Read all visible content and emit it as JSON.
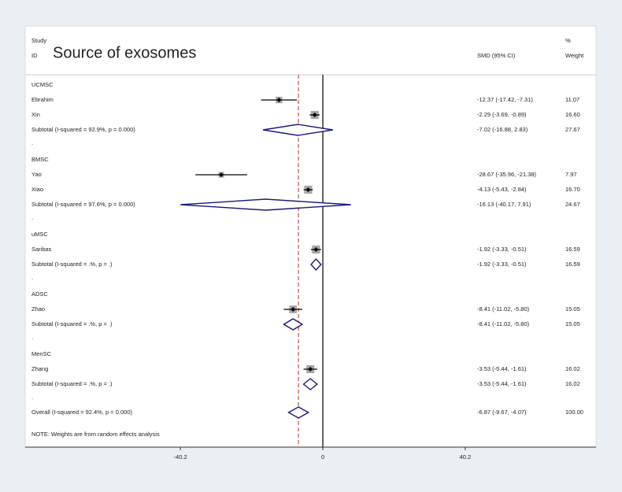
{
  "chart_data": {
    "type": "forest",
    "title": "Source of exosomes",
    "study_header": "Study",
    "id_header": "ID",
    "ci_header": "SMD (95% CI)",
    "weight_header_top": "%",
    "weight_header": "Weight",
    "groups": [
      {
        "name": "UCMSC",
        "studies": [
          {
            "label": "Ebrahim",
            "smd": -12.37,
            "lo": -17.42,
            "hi": -7.31,
            "ci_label": "-12.37 (-17.42, -7.31)",
            "weight": 11.07,
            "weight_label": "11.07"
          },
          {
            "label": "Xin",
            "smd": -2.29,
            "lo": -3.69,
            "hi": -0.89,
            "ci_label": "-2.29 (-3.69, -0.89)",
            "weight": 16.6,
            "weight_label": "16.60"
          }
        ],
        "subtotal": {
          "label": "Subtotal  (I-squared = 92.9%, p = 0.000)",
          "smd": -7.02,
          "lo": -16.88,
          "hi": 2.83,
          "ci_label": "-7.02 (-16.88, 2.83)",
          "weight": 27.67,
          "weight_label": "27.67"
        },
        "separator": "."
      },
      {
        "name": "BMSC",
        "studies": [
          {
            "label": "Yao",
            "smd": -28.67,
            "lo": -35.96,
            "hi": -21.38,
            "ci_label": "-28.67 (-35.96, -21.38)",
            "weight": 7.97,
            "weight_label": "7.97"
          },
          {
            "label": "Xiao",
            "smd": -4.13,
            "lo": -5.43,
            "hi": -2.84,
            "ci_label": "-4.13 (-5.43, -2.84)",
            "weight": 16.7,
            "weight_label": "16.70"
          }
        ],
        "subtotal": {
          "label": "Subtotal  (I-squared = 97.6%, p = 0.000)",
          "smd": -16.13,
          "lo": -40.17,
          "hi": 7.91,
          "ci_label": "-16.13 (-40.17, 7.91)",
          "weight": 24.67,
          "weight_label": "24.67"
        },
        "separator": "."
      },
      {
        "name": "uMSC",
        "studies": [
          {
            "label": "Saribas",
            "smd": -1.92,
            "lo": -3.33,
            "hi": -0.51,
            "ci_label": "-1.92 (-3.33, -0.51)",
            "weight": 16.59,
            "weight_label": "16.59"
          }
        ],
        "subtotal": {
          "label": "Subtotal  (I-squared = .%, p = .)",
          "smd": -1.92,
          "lo": -3.33,
          "hi": -0.51,
          "ci_label": "-1.92 (-3.33, -0.51)",
          "weight": 16.59,
          "weight_label": "16.59"
        },
        "separator": "."
      },
      {
        "name": "ADSC",
        "studies": [
          {
            "label": "Zhao",
            "smd": -8.41,
            "lo": -11.02,
            "hi": -5.8,
            "ci_label": "-8.41 (-11.02, -5.80)",
            "weight": 15.05,
            "weight_label": "15.05"
          }
        ],
        "subtotal": {
          "label": "Subtotal  (I-squared = .%, p = .)",
          "smd": -8.41,
          "lo": -11.02,
          "hi": -5.8,
          "ci_label": "-8.41 (-11.02, -5.80)",
          "weight": 15.05,
          "weight_label": "15.05"
        },
        "separator": "."
      },
      {
        "name": "MenSC",
        "studies": [
          {
            "label": "Zhang",
            "smd": -3.53,
            "lo": -5.44,
            "hi": -1.61,
            "ci_label": "-3.53 (-5.44, -1.61)",
            "weight": 16.02,
            "weight_label": "16.02"
          }
        ],
        "subtotal": {
          "label": "Subtotal  (I-squared = .%, p = .)",
          "smd": -3.53,
          "lo": -5.44,
          "hi": -1.61,
          "ci_label": "-3.53 (-5.44, -1.61)",
          "weight": 16.02,
          "weight_label": "16.02"
        },
        "separator": "."
      }
    ],
    "overall": {
      "label": "Overall  (I-squared = 92.4%, p = 0.000)",
      "smd": -6.87,
      "lo": -9.67,
      "hi": -4.07,
      "ci_label": "-6.87 (-9.67, -4.07)",
      "weight": 100,
      "weight_label": "100.00"
    },
    "note": "NOTE: Weights are from random effects analysis",
    "xlim": [
      -84,
      77.1
    ],
    "xticks": [
      -40.2,
      0,
      40.2
    ],
    "box_color": "#a6a6a6",
    "diamond_color": "#1a1a7a",
    "overall_line_color": "#c0504d"
  }
}
